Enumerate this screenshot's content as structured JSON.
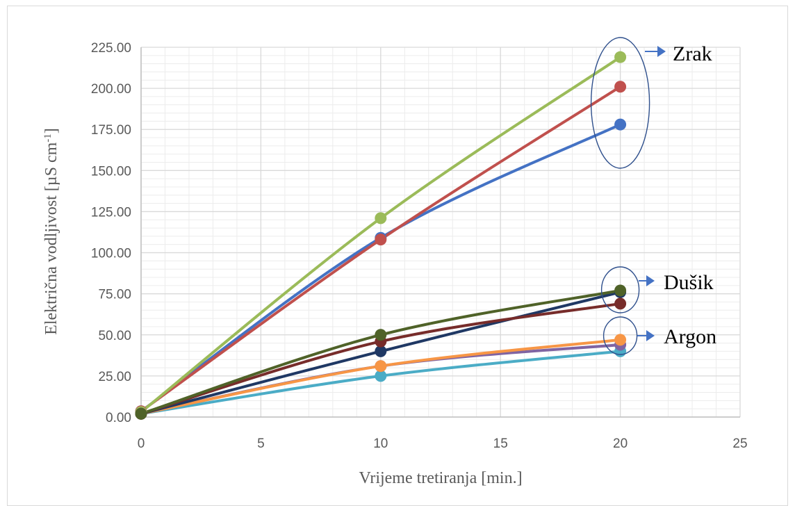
{
  "chart_data": {
    "type": "line",
    "xlabel": "Vrijeme tretiranja [min.]",
    "ylabel_main": "Električna vodljivost [µS cm",
    "ylabel_sup": "-1",
    "ylabel_end": "]",
    "xlim": [
      0,
      25
    ],
    "ylim": [
      0,
      225
    ],
    "xticks": [
      0,
      5,
      10,
      15,
      20,
      25
    ],
    "xtick_labels": [
      "0",
      "5",
      "10",
      "15",
      "20",
      "25"
    ],
    "yticks": [
      0,
      25,
      50,
      75,
      100,
      125,
      150,
      175,
      200,
      225
    ],
    "ytick_labels": [
      "0.00",
      "25.00",
      "50.00",
      "75.00",
      "100.00",
      "125.00",
      "150.00",
      "175.00",
      "200.00",
      "225.00"
    ],
    "grid": true,
    "x": [
      0,
      10,
      20
    ],
    "series": [
      {
        "color": "#4472c4",
        "values": [
          3.5,
          109,
          178
        ]
      },
      {
        "color": "#c0504d",
        "values": [
          3.5,
          108,
          201
        ]
      },
      {
        "color": "#9bbb59",
        "values": [
          3.0,
          121,
          219
        ]
      },
      {
        "color": "#4bacc6",
        "values": [
          2.0,
          25,
          40
        ]
      },
      {
        "color": "#8064a2",
        "values": [
          2.0,
          31,
          44
        ]
      },
      {
        "color": "#f79646",
        "values": [
          2.0,
          31,
          47
        ]
      },
      {
        "color": "#1f3864",
        "values": [
          2.0,
          40,
          76
        ]
      },
      {
        "color": "#772c2a",
        "values": [
          2.0,
          46,
          69
        ]
      },
      {
        "color": "#4f6228",
        "values": [
          2.0,
          50,
          77
        ]
      }
    ],
    "annotations": [
      {
        "text": "Zrak",
        "x": 20,
        "y": 199
      },
      {
        "text": "Dušik",
        "x": 20,
        "y": 73
      },
      {
        "text": "Argon",
        "x": 20,
        "y": 45
      }
    ]
  },
  "colors": {
    "annotation_ellipse": "#2e4f8c",
    "annotation_arrow": "#4472c4",
    "grid": "#d9d9d9"
  }
}
